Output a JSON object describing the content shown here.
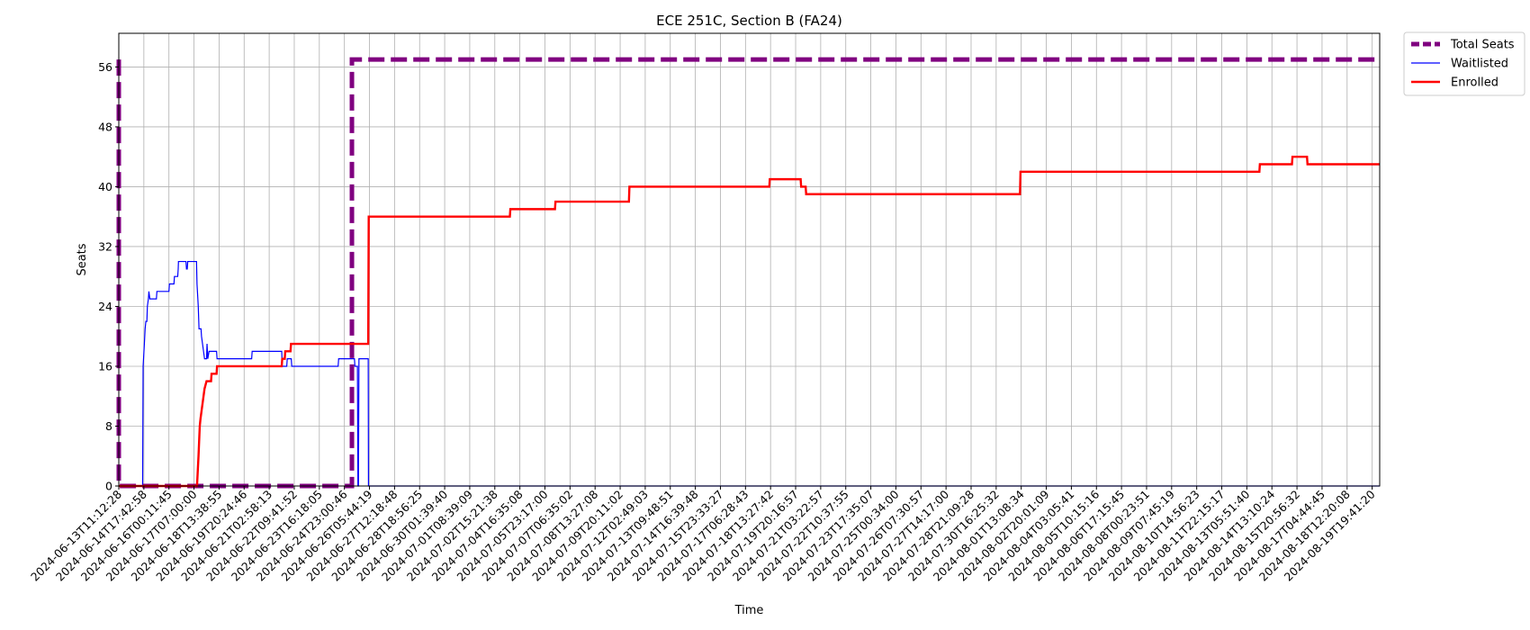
{
  "chart_data": {
    "type": "line",
    "title": "ECE 251C, Section B (FA24)",
    "xlabel": "Time",
    "ylabel": "Seats",
    "ylim": [
      0,
      60.5
    ],
    "yticks": [
      0,
      8,
      16,
      24,
      32,
      40,
      48,
      56
    ],
    "grid": true,
    "legend_placement": "outside-top-right",
    "x_tick_labels": [
      "2024-06-13T11:12:28",
      "2024-06-14T17:42:58",
      "2024-06-16T00:11:45",
      "2024-06-17T07:00:00",
      "2024-06-18T13:38:55",
      "2024-06-19T20:24:46",
      "2024-06-21T02:58:13",
      "2024-06-22T09:41:52",
      "2024-06-23T16:18:05",
      "2024-06-24T23:00:46",
      "2024-06-26T05:44:19",
      "2024-06-27T12:18:48",
      "2024-06-28T18:56:25",
      "2024-06-30T01:39:40",
      "2024-07-01T08:39:09",
      "2024-07-02T15:21:38",
      "2024-07-04T16:35:08",
      "2024-07-05T23:17:00",
      "2024-07-07T06:35:02",
      "2024-07-08T13:27:08",
      "2024-07-09T20:11:02",
      "2024-07-12T02:49:03",
      "2024-07-13T09:48:51",
      "2024-07-14T16:39:48",
      "2024-07-15T23:33:27",
      "2024-07-17T06:28:43",
      "2024-07-18T13:27:42",
      "2024-07-19T20:16:57",
      "2024-07-21T03:22:57",
      "2024-07-22T10:37:55",
      "2024-07-23T17:35:07",
      "2024-07-25T00:34:00",
      "2024-07-26T07:30:57",
      "2024-07-27T14:17:00",
      "2024-07-28T21:09:28",
      "2024-07-30T16:25:32",
      "2024-08-01T13:08:34",
      "2024-08-02T20:01:09",
      "2024-08-04T03:05:41",
      "2024-08-05T10:15:16",
      "2024-08-06T17:15:45",
      "2024-08-08T00:23:51",
      "2024-08-09T07:45:19",
      "2024-08-10T14:56:23",
      "2024-08-11T22:15:17",
      "2024-08-13T05:51:40",
      "2024-08-14T13:10:24",
      "2024-08-15T20:56:32",
      "2024-08-17T04:44:45",
      "2024-08-18T12:20:08",
      "2024-08-19T19:41:20"
    ],
    "series": [
      {
        "name": "Total Seats",
        "color": "#800080",
        "style": "dashed-thick",
        "points": [
          [
            0,
            57
          ],
          [
            0,
            0
          ],
          [
            9.3,
            0
          ],
          [
            9.3,
            57
          ],
          [
            50.3,
            57
          ]
        ]
      },
      {
        "name": "Waitlisted",
        "color": "#0000ff",
        "style": "thin",
        "points": [
          [
            0,
            0
          ],
          [
            0.95,
            0
          ],
          [
            0.97,
            16
          ],
          [
            1.02,
            19
          ],
          [
            1.05,
            21
          ],
          [
            1.08,
            22
          ],
          [
            1.12,
            22
          ],
          [
            1.14,
            24
          ],
          [
            1.18,
            25
          ],
          [
            1.2,
            26
          ],
          [
            1.24,
            25
          ],
          [
            1.5,
            25
          ],
          [
            1.52,
            26
          ],
          [
            2.0,
            26
          ],
          [
            2.02,
            27
          ],
          [
            2.2,
            27
          ],
          [
            2.22,
            28
          ],
          [
            2.35,
            28
          ],
          [
            2.37,
            29
          ],
          [
            2.38,
            30
          ],
          [
            2.68,
            30
          ],
          [
            2.7,
            29
          ],
          [
            2.73,
            29
          ],
          [
            2.75,
            30
          ],
          [
            3.1,
            30
          ],
          [
            3.12,
            27
          ],
          [
            3.17,
            24
          ],
          [
            3.2,
            21
          ],
          [
            3.28,
            21
          ],
          [
            3.3,
            20
          ],
          [
            3.34,
            19
          ],
          [
            3.38,
            18
          ],
          [
            3.42,
            17
          ],
          [
            3.5,
            17
          ],
          [
            3.52,
            19
          ],
          [
            3.55,
            17
          ],
          [
            3.6,
            18
          ],
          [
            3.9,
            18
          ],
          [
            3.92,
            17
          ],
          [
            5.3,
            17
          ],
          [
            5.32,
            18
          ],
          [
            6.5,
            18
          ],
          [
            6.52,
            16
          ],
          [
            6.7,
            16
          ],
          [
            6.72,
            17
          ],
          [
            6.88,
            17
          ],
          [
            6.9,
            16
          ],
          [
            8.75,
            16
          ],
          [
            8.77,
            17
          ],
          [
            9.4,
            17
          ],
          [
            9.42,
            16
          ],
          [
            9.52,
            16
          ],
          [
            9.54,
            0
          ],
          [
            9.56,
            0
          ],
          [
            9.58,
            17
          ],
          [
            9.95,
            17
          ],
          [
            9.96,
            0
          ],
          [
            50.3,
            0
          ]
        ]
      },
      {
        "name": "Enrolled",
        "color": "#ff0000",
        "style": "thick",
        "points": [
          [
            0,
            0
          ],
          [
            3.12,
            0
          ],
          [
            3.18,
            4
          ],
          [
            3.23,
            8
          ],
          [
            3.26,
            9
          ],
          [
            3.3,
            10
          ],
          [
            3.34,
            11
          ],
          [
            3.38,
            12
          ],
          [
            3.42,
            13
          ],
          [
            3.5,
            14
          ],
          [
            3.68,
            14
          ],
          [
            3.7,
            15
          ],
          [
            3.9,
            15
          ],
          [
            3.92,
            16
          ],
          [
            6.5,
            16
          ],
          [
            6.52,
            17
          ],
          [
            6.62,
            17
          ],
          [
            6.64,
            18
          ],
          [
            6.85,
            18
          ],
          [
            6.87,
            19
          ],
          [
            9.95,
            19
          ],
          [
            9.97,
            36
          ],
          [
            15.6,
            36
          ],
          [
            15.62,
            37
          ],
          [
            17.4,
            37
          ],
          [
            17.42,
            38
          ],
          [
            20.35,
            38
          ],
          [
            20.37,
            40
          ],
          [
            25.95,
            40
          ],
          [
            25.97,
            41
          ],
          [
            27.2,
            41
          ],
          [
            27.22,
            40
          ],
          [
            27.4,
            40
          ],
          [
            27.42,
            39
          ],
          [
            35.95,
            39
          ],
          [
            35.97,
            42
          ],
          [
            45.5,
            42
          ],
          [
            45.52,
            43
          ],
          [
            46.8,
            43
          ],
          [
            46.82,
            44
          ],
          [
            47.4,
            44
          ],
          [
            47.42,
            43
          ],
          [
            50.3,
            43
          ]
        ]
      }
    ]
  }
}
